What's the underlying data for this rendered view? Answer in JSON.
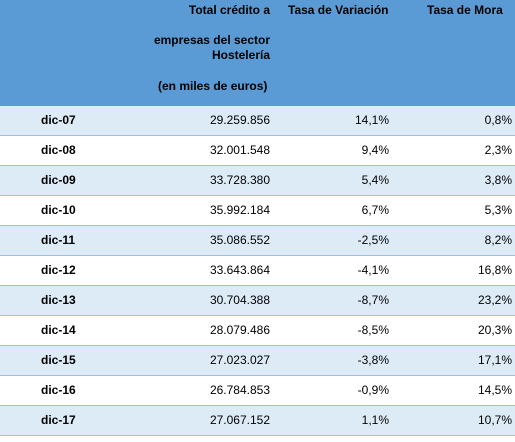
{
  "header": {
    "total_line1": "Total crédito a",
    "total_line2": "empresas del sector",
    "total_line3": "Hostelería",
    "total_line4": "(en miles de euros)",
    "tasa_variacion": "Tasa de Variación",
    "tasa_mora": "Tasa de Mora"
  },
  "rows": [
    {
      "label": "dic-07",
      "total": "29.259.856",
      "variacion": "14,1%",
      "mora": "0,8%"
    },
    {
      "label": "dic-08",
      "total": "32.001.548",
      "variacion": "9,4%",
      "mora": "2,3%"
    },
    {
      "label": "dic-09",
      "total": "33.728.380",
      "variacion": "5,4%",
      "mora": "3,8%"
    },
    {
      "label": "dic-10",
      "total": "35.992.184",
      "variacion": "6,7%",
      "mora": "5,3%"
    },
    {
      "label": "dic-11",
      "total": "35.086.552",
      "variacion": "-2,5%",
      "mora": "8,2%"
    },
    {
      "label": "dic-12",
      "total": "33.643.864",
      "variacion": "-4,1%",
      "mora": "16,8%"
    },
    {
      "label": "dic-13",
      "total": "30.704.388",
      "variacion": "-8,7%",
      "mora": "23,2%"
    },
    {
      "label": "dic-14",
      "total": "28.079.486",
      "variacion": "-8,5%",
      "mora": "20,3%"
    },
    {
      "label": "dic-15",
      "total": "27.023.027",
      "variacion": "-3,8%",
      "mora": "17,1%"
    },
    {
      "label": "dic-16",
      "total": "26.784.853",
      "variacion": "-0,9%",
      "mora": "14,5%"
    },
    {
      "label": "dic-17",
      "total": "27.067.152",
      "variacion": "1,1%",
      "mora": "10,7%"
    }
  ],
  "colors": {
    "header_bg": "#5b9bd5",
    "band_bg": "#ddebf7",
    "divider": "#9bc2e6"
  }
}
